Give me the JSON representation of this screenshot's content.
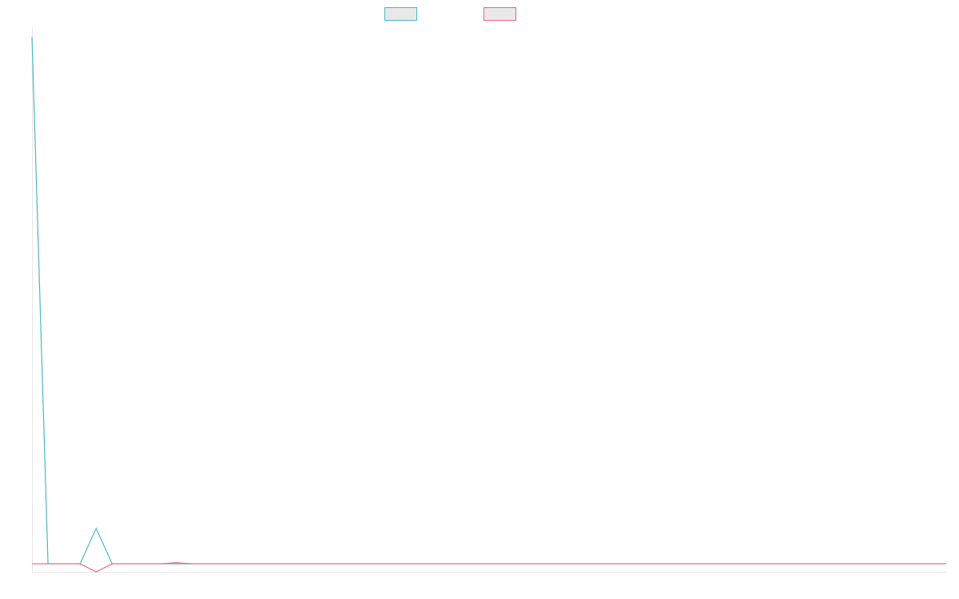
{
  "chart_data": {
    "type": "line",
    "title": "",
    "xlabel": "",
    "ylabel": "",
    "x": [
      0,
      1,
      2,
      3,
      4,
      5,
      6,
      7,
      8,
      9,
      10,
      11,
      12,
      13,
      14,
      15,
      16,
      17,
      18,
      19,
      20,
      21,
      22,
      23,
      24,
      25,
      26,
      27,
      28,
      29,
      30,
      31,
      32,
      33,
      34,
      35,
      36,
      37,
      38,
      39,
      40,
      41,
      42,
      43,
      44,
      45,
      46,
      47,
      48,
      49,
      50,
      51,
      52,
      53,
      54,
      55,
      56,
      57
    ],
    "ylim": [
      -15,
      1000
    ],
    "grid": false,
    "legend": "top-center",
    "series": [
      {
        "color": "#4bb8c0",
        "values": [
          983,
          0,
          0,
          0,
          66,
          0,
          0,
          0,
          0,
          0,
          0,
          0,
          0,
          0,
          0,
          0,
          0,
          0,
          0,
          0,
          0,
          0,
          0,
          0,
          0,
          0,
          0,
          0,
          0,
          0,
          0,
          0,
          0,
          0,
          0,
          0,
          0,
          0,
          0,
          0,
          0,
          0,
          0,
          0,
          0,
          0,
          0,
          0,
          0,
          0,
          0,
          0,
          0,
          0,
          0,
          0,
          0,
          0
        ]
      },
      {
        "color": "#f0628a",
        "values": [
          0,
          0,
          0,
          0,
          -15,
          0,
          0,
          0,
          0,
          2,
          0,
          0,
          0,
          0,
          0,
          0,
          0,
          0,
          0,
          0,
          0,
          0,
          0,
          0,
          0,
          0,
          0,
          0,
          0,
          0,
          0,
          0,
          0,
          0,
          0,
          0,
          0,
          0,
          0,
          0,
          0,
          0,
          0,
          0,
          0,
          0,
          0,
          0,
          0,
          0,
          0,
          0,
          0,
          0,
          0,
          0,
          0,
          0
        ]
      }
    ]
  }
}
